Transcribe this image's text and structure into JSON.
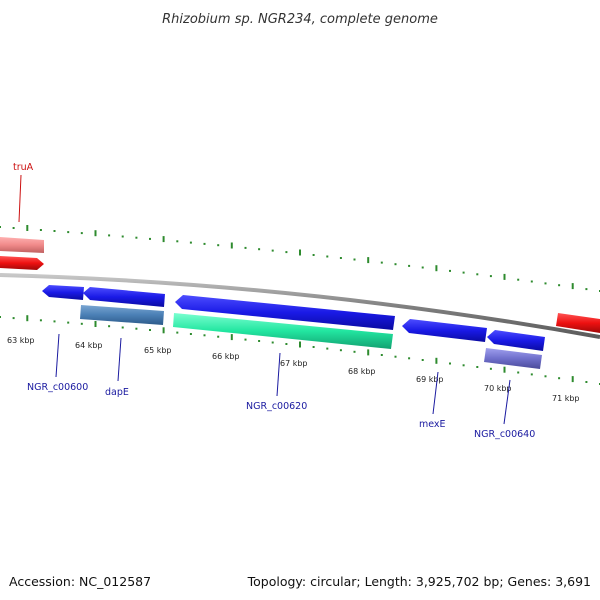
{
  "title": "Rhizobium sp. NGR234, complete genome",
  "footer": {
    "accession": "Accession: NC_012587",
    "summary": "Topology: circular; Length: 3,925,702 bp; Genes: 3,691"
  },
  "ticks": [
    "63 kbp",
    "64 kbp",
    "65 kbp",
    "66 kbp",
    "67 kbp",
    "68 kbp",
    "69 kbp",
    "70 kbp",
    "71 kbp"
  ],
  "labels": {
    "truA": "truA",
    "NGR_c00600": "NGR_c00600",
    "dapE": "dapE",
    "NGR_c00620": "NGR_c00620",
    "mexE": "mexE",
    "NGR_c00640": "NGR_c00640"
  },
  "colors": {
    "backbone": "#8c8c8c",
    "tick": "#2e8b2e",
    "gene_blue": "#1a1ae6",
    "cds_steel": "#4a7fb5",
    "cds_cyan": "#22e6a0",
    "cds_purple": "#7070cc",
    "red_gene": "#ee1111",
    "red_cds": "#f08a8a",
    "label_blue": "#1a1aa0",
    "label_red": "#cc1111"
  }
}
